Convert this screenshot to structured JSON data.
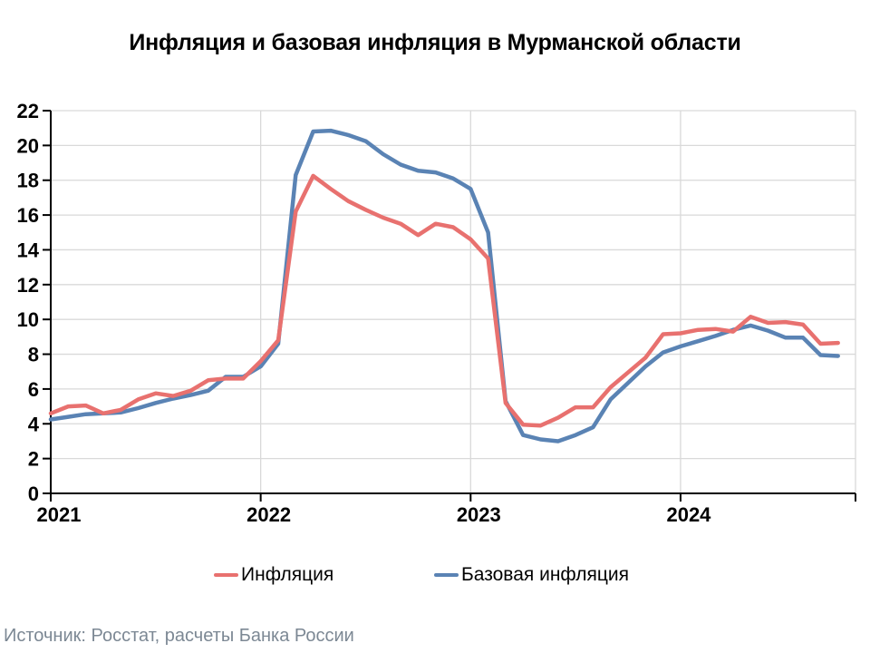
{
  "title": "Инфляция и базовая инфляция в Мурманской области",
  "source": "Источник: Росстат, расчеты Банка России",
  "legend": [
    {
      "label": "Инфляция",
      "color": "#E8716F"
    },
    {
      "label": "Базовая инфляция",
      "color": "#5A83B4"
    }
  ],
  "colors": {
    "inflation_line": "#E8716F",
    "core_inflation_line": "#5A83B4",
    "gridline": "#D9D9D9",
    "axis": "#000000",
    "source_text": "#7C8894",
    "background": "#FFFFFF"
  },
  "chart_data": {
    "type": "line",
    "title": "Инфляция и базовая инфляция в Мурманской области",
    "xlabel": "",
    "ylabel": "",
    "ylim": [
      0,
      22
    ],
    "ytick_step": 2,
    "ytick_labels": [
      "0",
      "2",
      "4",
      "6",
      "8",
      "10",
      "12",
      "14",
      "16",
      "18",
      "20",
      "22"
    ],
    "xtick_labels": [
      "2021",
      "2022",
      "2023",
      "2024"
    ],
    "xtick_month_index": [
      0,
      12,
      24,
      36
    ],
    "grid": true,
    "legend_position": "bottom",
    "x": [
      "2021-01",
      "2021-02",
      "2021-03",
      "2021-04",
      "2021-05",
      "2021-06",
      "2021-07",
      "2021-08",
      "2021-09",
      "2021-10",
      "2021-11",
      "2021-12",
      "2022-01",
      "2022-02",
      "2022-03",
      "2022-04",
      "2022-05",
      "2022-06",
      "2022-07",
      "2022-08",
      "2022-09",
      "2022-10",
      "2022-11",
      "2022-12",
      "2023-01",
      "2023-02",
      "2023-03",
      "2023-04",
      "2023-05",
      "2023-06",
      "2023-07",
      "2023-08",
      "2023-09",
      "2023-10",
      "2023-11",
      "2023-12",
      "2024-01",
      "2024-02",
      "2024-03",
      "2024-04",
      "2024-05",
      "2024-06",
      "2024-07",
      "2024-08",
      "2024-09",
      "2024-10"
    ],
    "series": [
      {
        "name": "Инфляция",
        "color": "#E8716F",
        "values": [
          4.6,
          5.0,
          5.05,
          4.6,
          4.8,
          5.4,
          5.75,
          5.6,
          5.9,
          6.5,
          6.6,
          6.6,
          7.6,
          8.8,
          16.2,
          18.25,
          17.5,
          16.8,
          16.3,
          15.85,
          15.5,
          14.85,
          15.5,
          15.3,
          14.6,
          13.5,
          5.2,
          3.95,
          3.9,
          4.35,
          4.95,
          4.95,
          6.1,
          6.95,
          7.8,
          9.15,
          9.2,
          9.4,
          9.45,
          9.3,
          10.15,
          9.8,
          9.85,
          9.7,
          8.6,
          8.65
        ]
      },
      {
        "name": "Базовая инфляция",
        "color": "#5A83B4",
        "values": [
          4.25,
          4.4,
          4.55,
          4.6,
          4.65,
          4.9,
          5.2,
          5.45,
          5.65,
          5.9,
          6.7,
          6.7,
          7.3,
          8.6,
          18.3,
          20.8,
          20.85,
          20.6,
          20.25,
          19.5,
          18.9,
          18.55,
          18.45,
          18.1,
          17.5,
          15.0,
          5.3,
          3.35,
          3.1,
          3.0,
          3.35,
          3.8,
          5.4,
          6.35,
          7.3,
          8.1,
          8.45,
          8.75,
          9.05,
          9.4,
          9.65,
          9.35,
          8.95,
          8.95,
          7.95,
          7.9
        ]
      }
    ]
  }
}
